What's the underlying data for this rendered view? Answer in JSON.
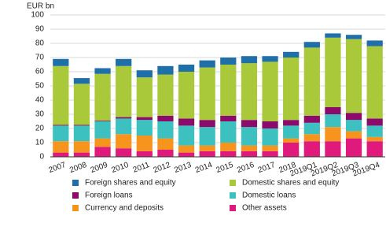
{
  "chart_data": {
    "type": "stacked_bar",
    "y_label": "EUR bn",
    "categories": [
      "2007",
      "2008",
      "2009",
      "2010",
      "2011",
      "2012",
      "2013",
      "2014",
      "2015",
      "2016",
      "2017",
      "2018",
      "2019Q1",
      "2019Q2",
      "2019Q3",
      "2019Q4"
    ],
    "series": [
      {
        "name": "Other assets",
        "color": "#e0197d",
        "values": [
          3,
          3,
          7,
          6,
          4,
          5,
          3,
          4,
          4,
          4,
          4,
          10,
          11,
          11,
          13,
          11
        ]
      },
      {
        "name": "Currency and deposits",
        "color": "#f7941d",
        "values": [
          8,
          8,
          6,
          10,
          11,
          8,
          5,
          4,
          6,
          4,
          4,
          3,
          5,
          10,
          5,
          3
        ]
      },
      {
        "name": "Domestic loans",
        "color": "#3cc0c0",
        "values": [
          11,
          11,
          12,
          11,
          11,
          12,
          14,
          13,
          15,
          13,
          12,
          9,
          8,
          9,
          8,
          8
        ]
      },
      {
        "name": "Foreign loans",
        "color": "#8b0a6b",
        "values": [
          0.5,
          0.5,
          0.5,
          1,
          2,
          4,
          5,
          5,
          4,
          5,
          5,
          4,
          5,
          5,
          5,
          5
        ]
      },
      {
        "name": "Domestic shares and equity",
        "color": "#a9c93b",
        "values": [
          41.5,
          29,
          33,
          36,
          28,
          29,
          33,
          37,
          36,
          40,
          42,
          44,
          48,
          49,
          52,
          51
        ]
      },
      {
        "name": "Foreign shares and equity",
        "color": "#1f6fa8",
        "values": [
          5,
          4,
          4,
          5,
          5,
          6,
          5,
          5,
          5,
          5,
          4,
          4,
          4,
          3,
          3,
          4
        ]
      }
    ],
    "ylim": [
      0,
      100
    ],
    "yticks": [
      0,
      10,
      20,
      30,
      40,
      50,
      60,
      70,
      80,
      90,
      100
    ],
    "grid": true,
    "legend_order": [
      5,
      4,
      3,
      2,
      1,
      0
    ]
  }
}
